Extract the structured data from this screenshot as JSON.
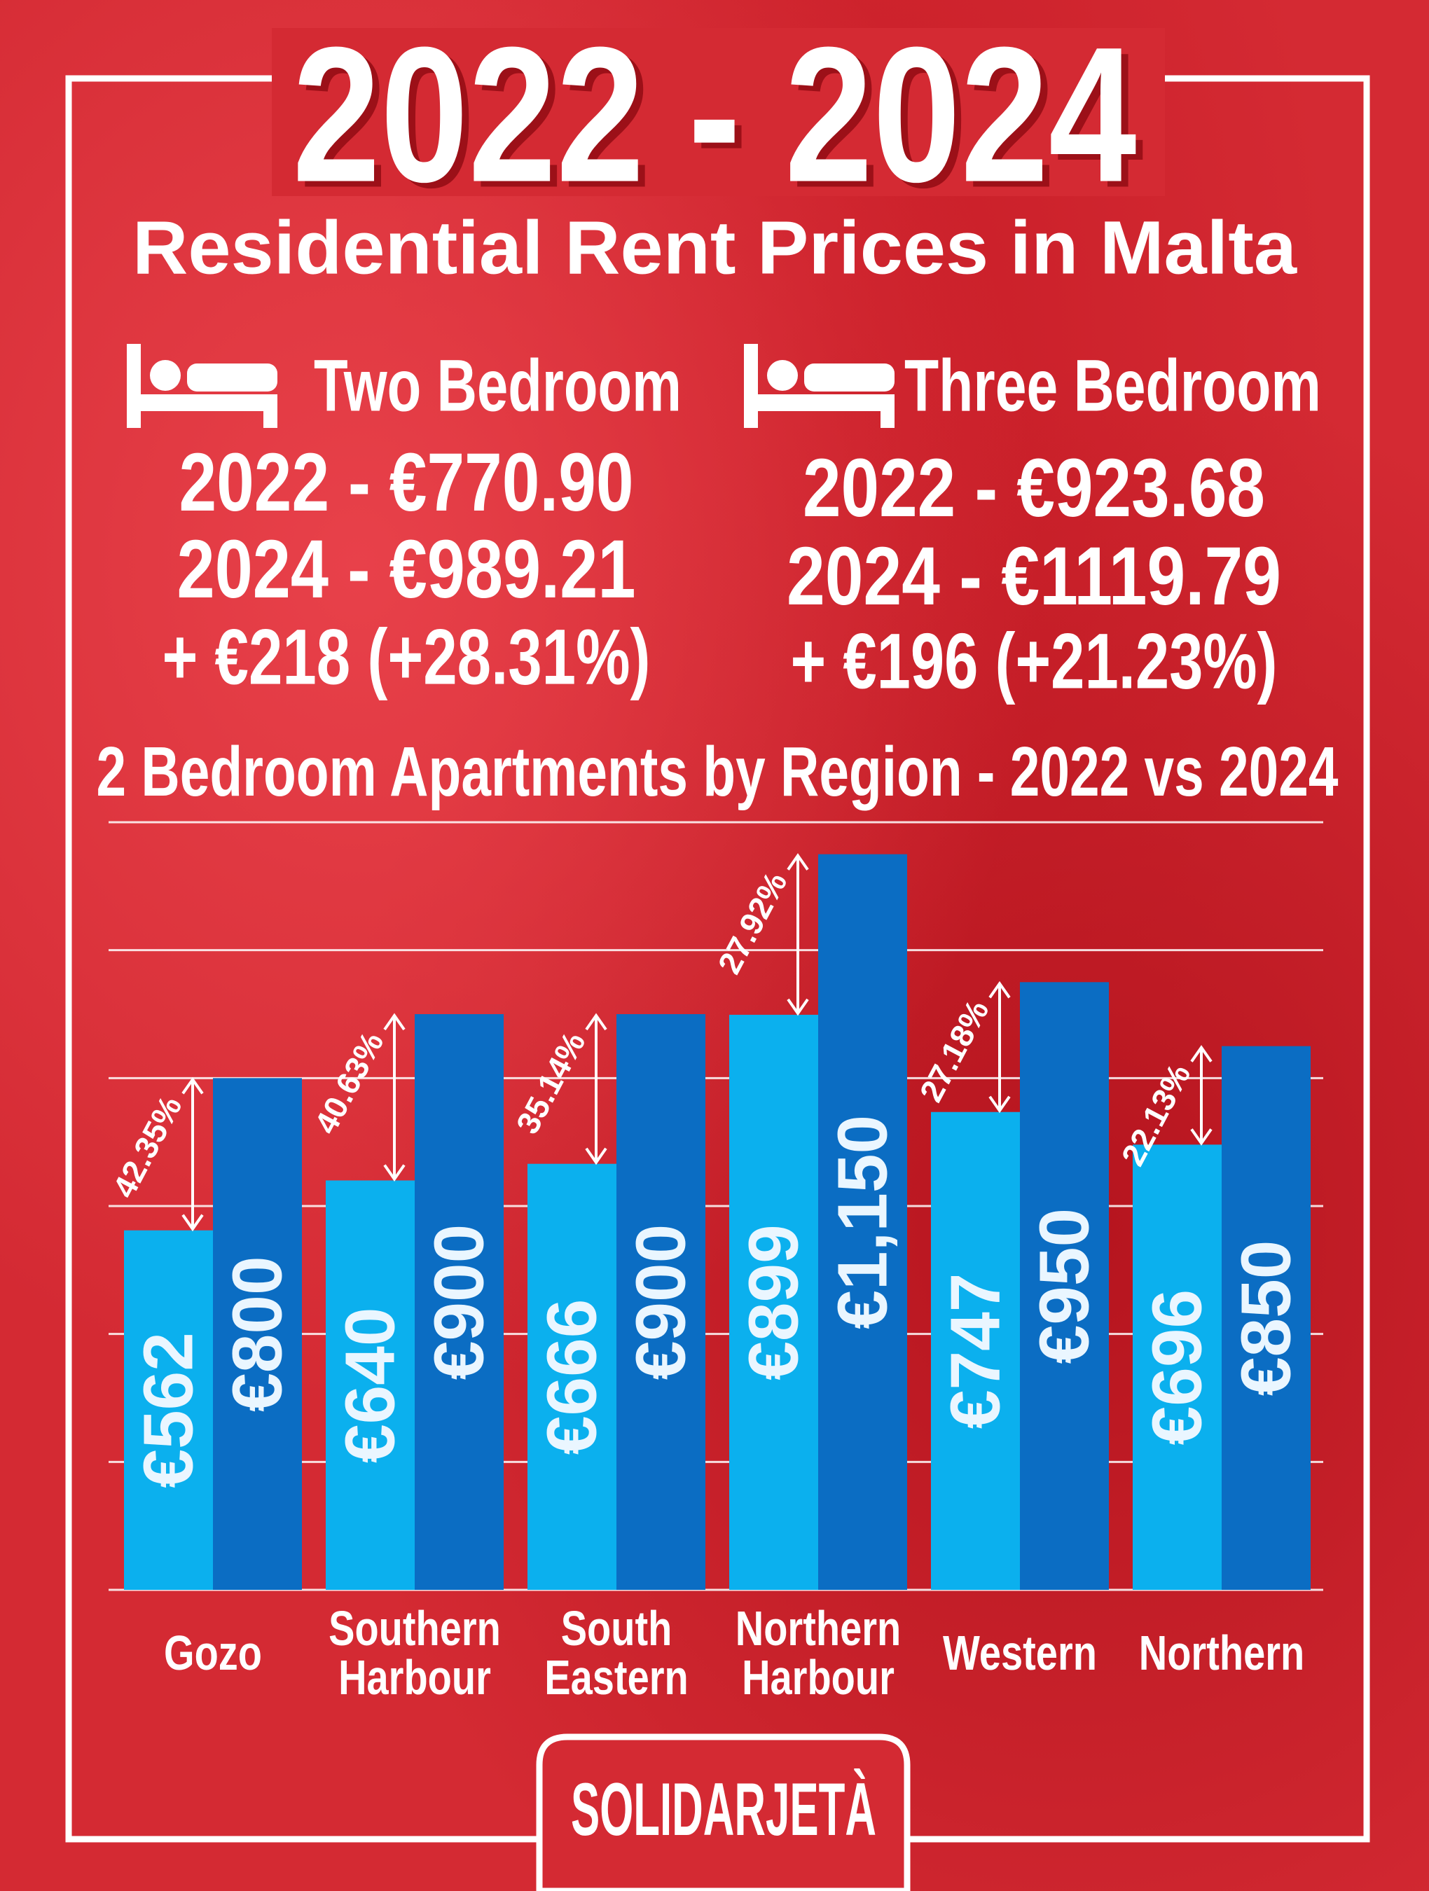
{
  "header": {
    "title": "2022 - 2024",
    "subtitle": "Residential Rent Prices in Malta"
  },
  "cards": [
    {
      "label": "Two Bedroom",
      "lines": [
        "2022 - €770.90",
        "2024 - €989.21",
        "+ €218 (+28.31%)"
      ]
    },
    {
      "label": "Three Bedroom",
      "lines": [
        "2022 - €923.68",
        "2024 - €1119.79",
        "+ €196 (+21.23%)"
      ]
    }
  ],
  "chart_data": {
    "type": "bar",
    "title": "2 Bedroom Apartments by Region - 2022 vs 2024",
    "categories": [
      "Gozo",
      "Southern Harbour",
      "South Eastern",
      "Northern Harbour",
      "Western",
      "Northern"
    ],
    "series": [
      {
        "color": "#0bb0ee",
        "values": [
          562,
          640,
          666,
          899,
          747,
          696
        ],
        "value_labels": [
          "€562",
          "€640",
          "€666",
          "€899",
          "€747",
          "€696"
        ]
      },
      {
        "color": "#0b6dc3",
        "values": [
          800,
          900,
          900,
          1150,
          950,
          850
        ],
        "value_labels": [
          "€800",
          "€900",
          "€900",
          "€1,150",
          "€950",
          "€850"
        ]
      }
    ],
    "change_labels": [
      "42.35%",
      "40.63%",
      "35.14%",
      "27.92%",
      "27.18%",
      "22.13%"
    ],
    "ylim": [
      0,
      1200
    ],
    "yticks": [
      0,
      200,
      400,
      600,
      800,
      1000,
      1200
    ],
    "grid": true
  },
  "footer": {
    "brand": "SOLIDARJETÀ"
  }
}
